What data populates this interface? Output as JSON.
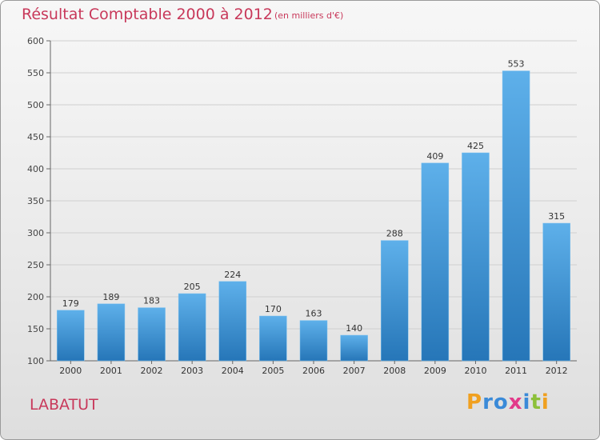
{
  "title": "Résultat Comptable 2000 à 2012",
  "subtitle": "(en milliers d'€)",
  "city": "LABATUT",
  "logo": "Proxiti",
  "colors": {
    "title": "#c8385a",
    "bar_top": "#5eb0ea",
    "bar_bottom": "#2676b8"
  },
  "chart_data": {
    "type": "bar",
    "title": "Résultat Comptable 2000 à 2012",
    "subtitle": "(en milliers d'€)",
    "categories": [
      "2000",
      "2001",
      "2002",
      "2003",
      "2004",
      "2005",
      "2006",
      "2007",
      "2008",
      "2009",
      "2010",
      "2011",
      "2012"
    ],
    "values": [
      179,
      189,
      183,
      205,
      224,
      170,
      163,
      140,
      288,
      409,
      425,
      553,
      315
    ],
    "ylim": [
      100,
      600
    ],
    "yticks": [
      100,
      150,
      200,
      250,
      300,
      350,
      400,
      450,
      500,
      550,
      600
    ],
    "grid": true,
    "legend": "none"
  }
}
